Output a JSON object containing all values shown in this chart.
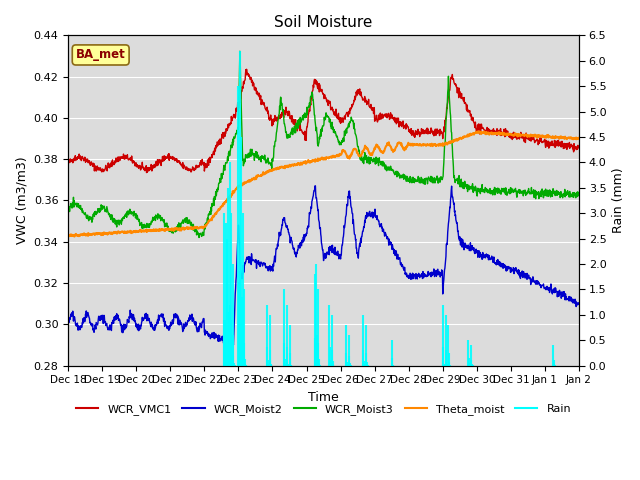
{
  "title": "Soil Moisture",
  "xlabel": "Time",
  "ylabel_left": "VWC (m3/m3)",
  "ylabel_right": "Rain (mm)",
  "ylim_left": [
    0.28,
    0.44
  ],
  "ylim_right": [
    0.0,
    6.5
  ],
  "yticks_left": [
    0.28,
    0.3,
    0.32,
    0.34,
    0.36,
    0.38,
    0.4,
    0.42,
    0.44
  ],
  "yticks_right": [
    0.0,
    0.5,
    1.0,
    1.5,
    2.0,
    2.5,
    3.0,
    3.5,
    4.0,
    4.5,
    5.0,
    5.5,
    6.0,
    6.5
  ],
  "background_color": "#dcdcdc",
  "annotation_text": "BA_met",
  "legend_items": [
    "WCR_VMC1",
    "WCR_Moist2",
    "WCR_Moist3",
    "Theta_moist",
    "Rain"
  ],
  "line_colors": {
    "WCR_VMC1": "#cc0000",
    "WCR_Moist2": "#0000cc",
    "WCR_Moist3": "#00aa00",
    "Theta_moist": "#ff8800",
    "Rain": "cyan"
  }
}
